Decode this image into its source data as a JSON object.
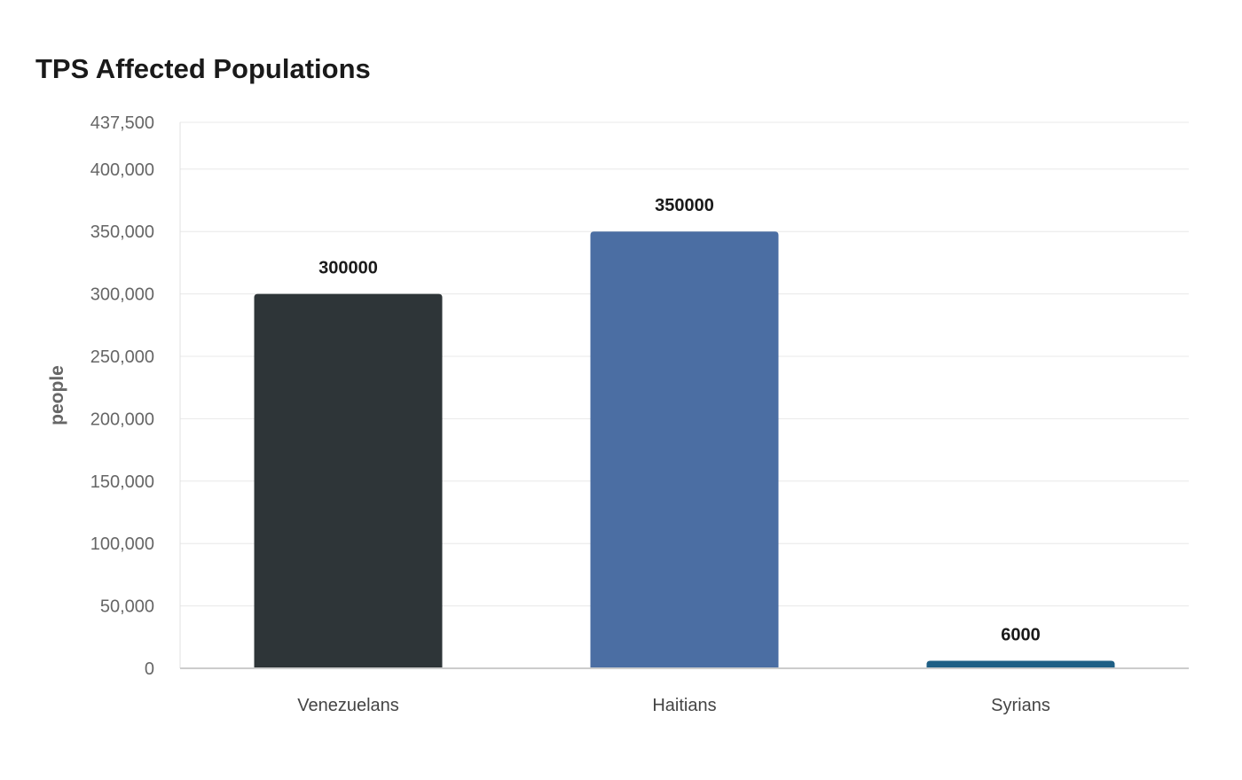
{
  "chart_data": {
    "type": "bar",
    "title": "TPS Affected Populations",
    "xlabel": "",
    "ylabel": "people",
    "categories": [
      "Venezuelans",
      "Haitians",
      "Syrians"
    ],
    "values": [
      300000,
      350000,
      6000
    ],
    "data_labels": [
      "300000",
      "350000",
      "6000"
    ],
    "colors": [
      "#2e3538",
      "#4b6ea3",
      "#1e5f85"
    ],
    "ylim": [
      0,
      437500
    ],
    "yticks": [
      0,
      50000,
      100000,
      150000,
      200000,
      250000,
      300000,
      350000,
      400000,
      437500
    ],
    "ytick_labels": [
      "0",
      "50,000",
      "100,000",
      "150,000",
      "200,000",
      "250,000",
      "300,000",
      "350,000",
      "400,000",
      "437,500"
    ],
    "grid": true,
    "legend": "none"
  }
}
